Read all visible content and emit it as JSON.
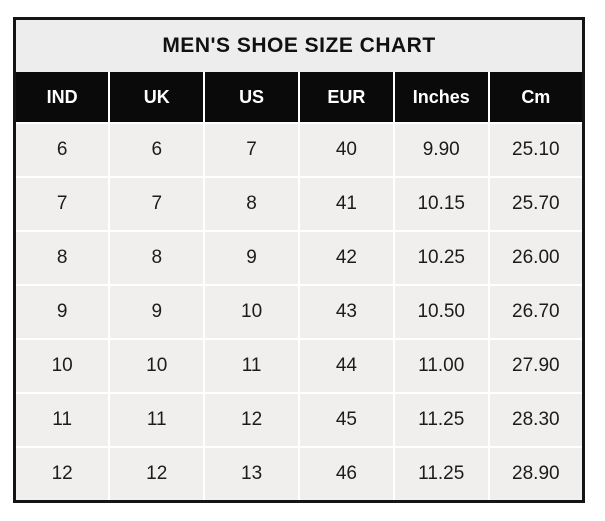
{
  "chart_data": {
    "type": "table",
    "title": "MEN'S SHOE SIZE CHART",
    "columns": [
      "IND",
      "UK",
      "US",
      "EUR",
      "Inches",
      "Cm"
    ],
    "rows": [
      [
        "6",
        "6",
        "7",
        "40",
        "9.90",
        "25.10"
      ],
      [
        "7",
        "7",
        "8",
        "41",
        "10.15",
        "25.70"
      ],
      [
        "8",
        "8",
        "9",
        "42",
        "10.25",
        "26.00"
      ],
      [
        "9",
        "9",
        "10",
        "43",
        "10.50",
        "26.70"
      ],
      [
        "10",
        "10",
        "11",
        "44",
        "11.00",
        "27.90"
      ],
      [
        "11",
        "11",
        "12",
        "45",
        "11.25",
        "28.30"
      ],
      [
        "12",
        "12",
        "13",
        "46",
        "11.25",
        "28.90"
      ]
    ]
  },
  "colors": {
    "title_bg": "#ededed",
    "header_bg": "#0a0a0a",
    "header_text": "#ffffff",
    "cell_bg": "#f0efee",
    "gridline": "#ffffff",
    "outer_border": "#141414",
    "body_text": "#1c1c1c",
    "page_bg": "#ffffff"
  }
}
